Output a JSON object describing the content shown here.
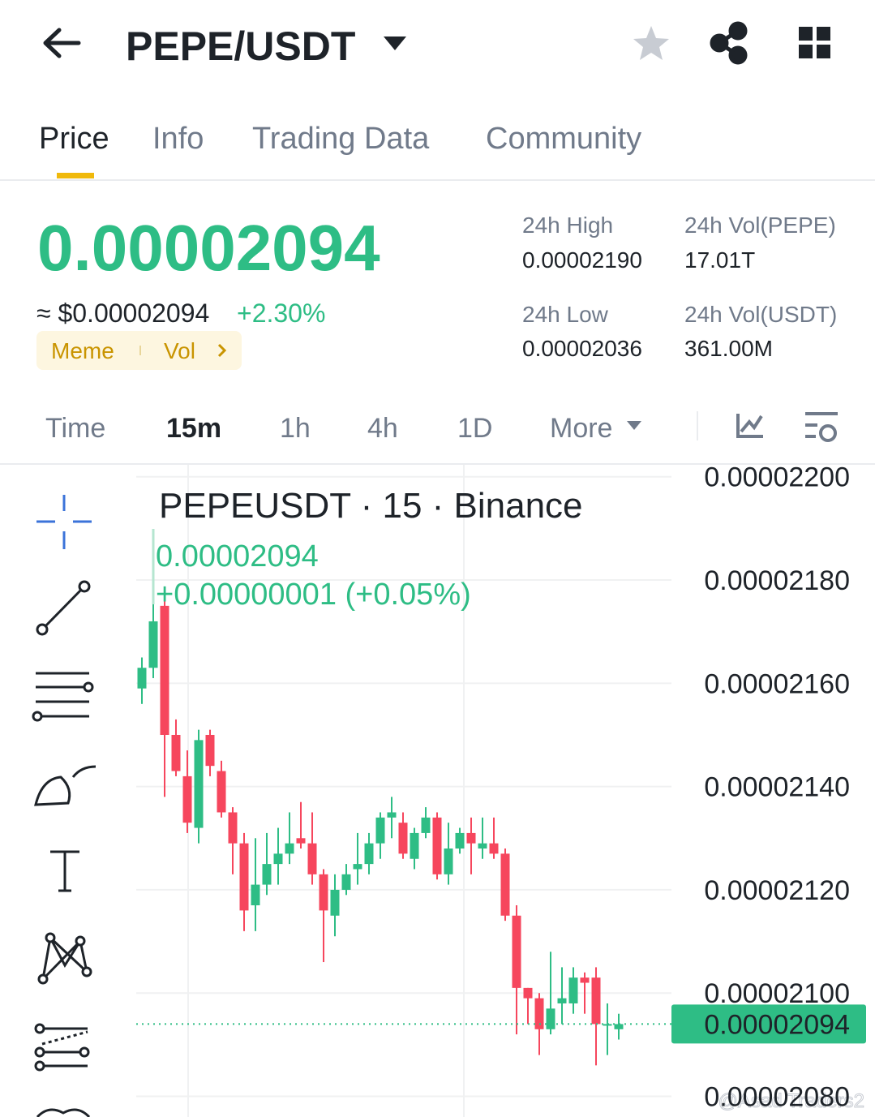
{
  "header": {
    "title": "PEPE/USDT"
  },
  "tabs": [
    "Price",
    "Info",
    "Trading Data",
    "Community"
  ],
  "price": {
    "last": "0.00002094",
    "usd": "≈ $0.00002094",
    "change": "+2.30%",
    "tags": [
      "Meme",
      "Vol"
    ]
  },
  "stats": [
    {
      "label": "24h High",
      "value": "0.00002190"
    },
    {
      "label": "24h Vol(PEPE)",
      "value": "17.01T"
    },
    {
      "label": "24h Low",
      "value": "0.00002036"
    },
    {
      "label": "24h Vol(USDT)",
      "value": "361.00M"
    }
  ],
  "intervals": [
    "Time",
    "15m",
    "1h",
    "4h",
    "1D",
    "More"
  ],
  "chart_data": {
    "type": "candlestick",
    "title": "PEPEUSDT · 15 · Binance",
    "legend_price": "0.00002094",
    "legend_change": "+0.00000001 (+0.05%)",
    "up_color": "#2ebd85",
    "down_color": "#f6465d",
    "grid": true,
    "open": [
      2.159e-05,
      2.163e-05,
      2.175e-05,
      2.15e-05,
      2.142e-05,
      2.132e-05,
      2.15e-05,
      2.143e-05,
      2.135e-05,
      2.129e-05,
      2.117e-05,
      2.121e-05,
      2.125e-05,
      2.127e-05,
      2.13e-05,
      2.129e-05,
      2.123e-05,
      2.115e-05,
      2.12e-05,
      2.124e-05,
      2.125e-05,
      2.129e-05,
      2.134e-05,
      2.133e-05,
      2.126e-05,
      2.131e-05,
      2.134e-05,
      2.123e-05,
      2.128e-05,
      2.131e-05,
      2.128e-05,
      2.129e-05,
      2.127e-05,
      2.115e-05,
      2.101e-05,
      2.099e-05,
      2.093e-05,
      2.098e-05,
      2.098e-05,
      2.103e-05,
      2.103e-05,
      2.094e-05,
      2.093e-05
    ],
    "high": [
      2.165e-05,
      2.176e-05,
      2.176e-05,
      2.153e-05,
      2.147e-05,
      2.151e-05,
      2.151e-05,
      2.145e-05,
      2.136e-05,
      2.131e-05,
      2.13e-05,
      2.131e-05,
      2.132e-05,
      2.135e-05,
      2.137e-05,
      2.135e-05,
      2.124e-05,
      2.123e-05,
      2.125e-05,
      2.131e-05,
      2.131e-05,
      2.135e-05,
      2.138e-05,
      2.135e-05,
      2.132e-05,
      2.136e-05,
      2.135e-05,
      2.133e-05,
      2.132e-05,
      2.134e-05,
      2.134e-05,
      2.134e-05,
      2.128e-05,
      2.117e-05,
      2.101e-05,
      2.1e-05,
      2.108e-05,
      2.105e-05,
      2.105e-05,
      2.104e-05,
      2.105e-05,
      2.098e-05,
      2.096e-05
    ],
    "low": [
      2.156e-05,
      2.161e-05,
      2.138e-05,
      2.142e-05,
      2.131e-05,
      2.129e-05,
      2.142e-05,
      2.134e-05,
      2.123e-05,
      2.112e-05,
      2.112e-05,
      2.119e-05,
      2.121e-05,
      2.125e-05,
      2.128e-05,
      2.121e-05,
      2.106e-05,
      2.111e-05,
      2.119e-05,
      2.121e-05,
      2.123e-05,
      2.126e-05,
      2.13e-05,
      2.126e-05,
      2.124e-05,
      2.13e-05,
      2.122e-05,
      2.121e-05,
      2.127e-05,
      2.123e-05,
      2.126e-05,
      2.126e-05,
      2.114e-05,
      2.092e-05,
      2.094e-05,
      2.088e-05,
      2.092e-05,
      2.094e-05,
      2.096e-05,
      2.096e-05,
      2.086e-05,
      2.088e-05,
      2.091e-05
    ],
    "close": [
      2.163e-05,
      2.172e-05,
      2.15e-05,
      2.143e-05,
      2.133e-05,
      2.149e-05,
      2.144e-05,
      2.135e-05,
      2.129e-05,
      2.116e-05,
      2.121e-05,
      2.125e-05,
      2.127e-05,
      2.129e-05,
      2.129e-05,
      2.123e-05,
      2.116e-05,
      2.12e-05,
      2.123e-05,
      2.125e-05,
      2.129e-05,
      2.134e-05,
      2.135e-05,
      2.127e-05,
      2.131e-05,
      2.134e-05,
      2.123e-05,
      2.128e-05,
      2.131e-05,
      2.129e-05,
      2.129e-05,
      2.127e-05,
      2.115e-05,
      2.101e-05,
      2.099e-05,
      2.093e-05,
      2.097e-05,
      2.099e-05,
      2.103e-05,
      2.102e-05,
      2.094e-05,
      2.094e-05,
      2.094e-05
    ],
    "ylim": [
      2.076e-05,
      2.202e-05
    ],
    "yticks": [
      {
        "value": 2.2e-05,
        "label": "0.00002200"
      },
      {
        "value": 2.18e-05,
        "label": "0.00002180"
      },
      {
        "value": 2.16e-05,
        "label": "0.00002160"
      },
      {
        "value": 2.14e-05,
        "label": "0.00002140"
      },
      {
        "value": 2.12e-05,
        "label": "0.00002120"
      },
      {
        "value": 2.1e-05,
        "label": "0.00002100"
      },
      {
        "value": 2.08e-05,
        "label": "0.00002080"
      }
    ],
    "last_price": {
      "value": 2.094e-05,
      "label": "0.00002094"
    }
  },
  "watermark": "@Asad Traders2"
}
